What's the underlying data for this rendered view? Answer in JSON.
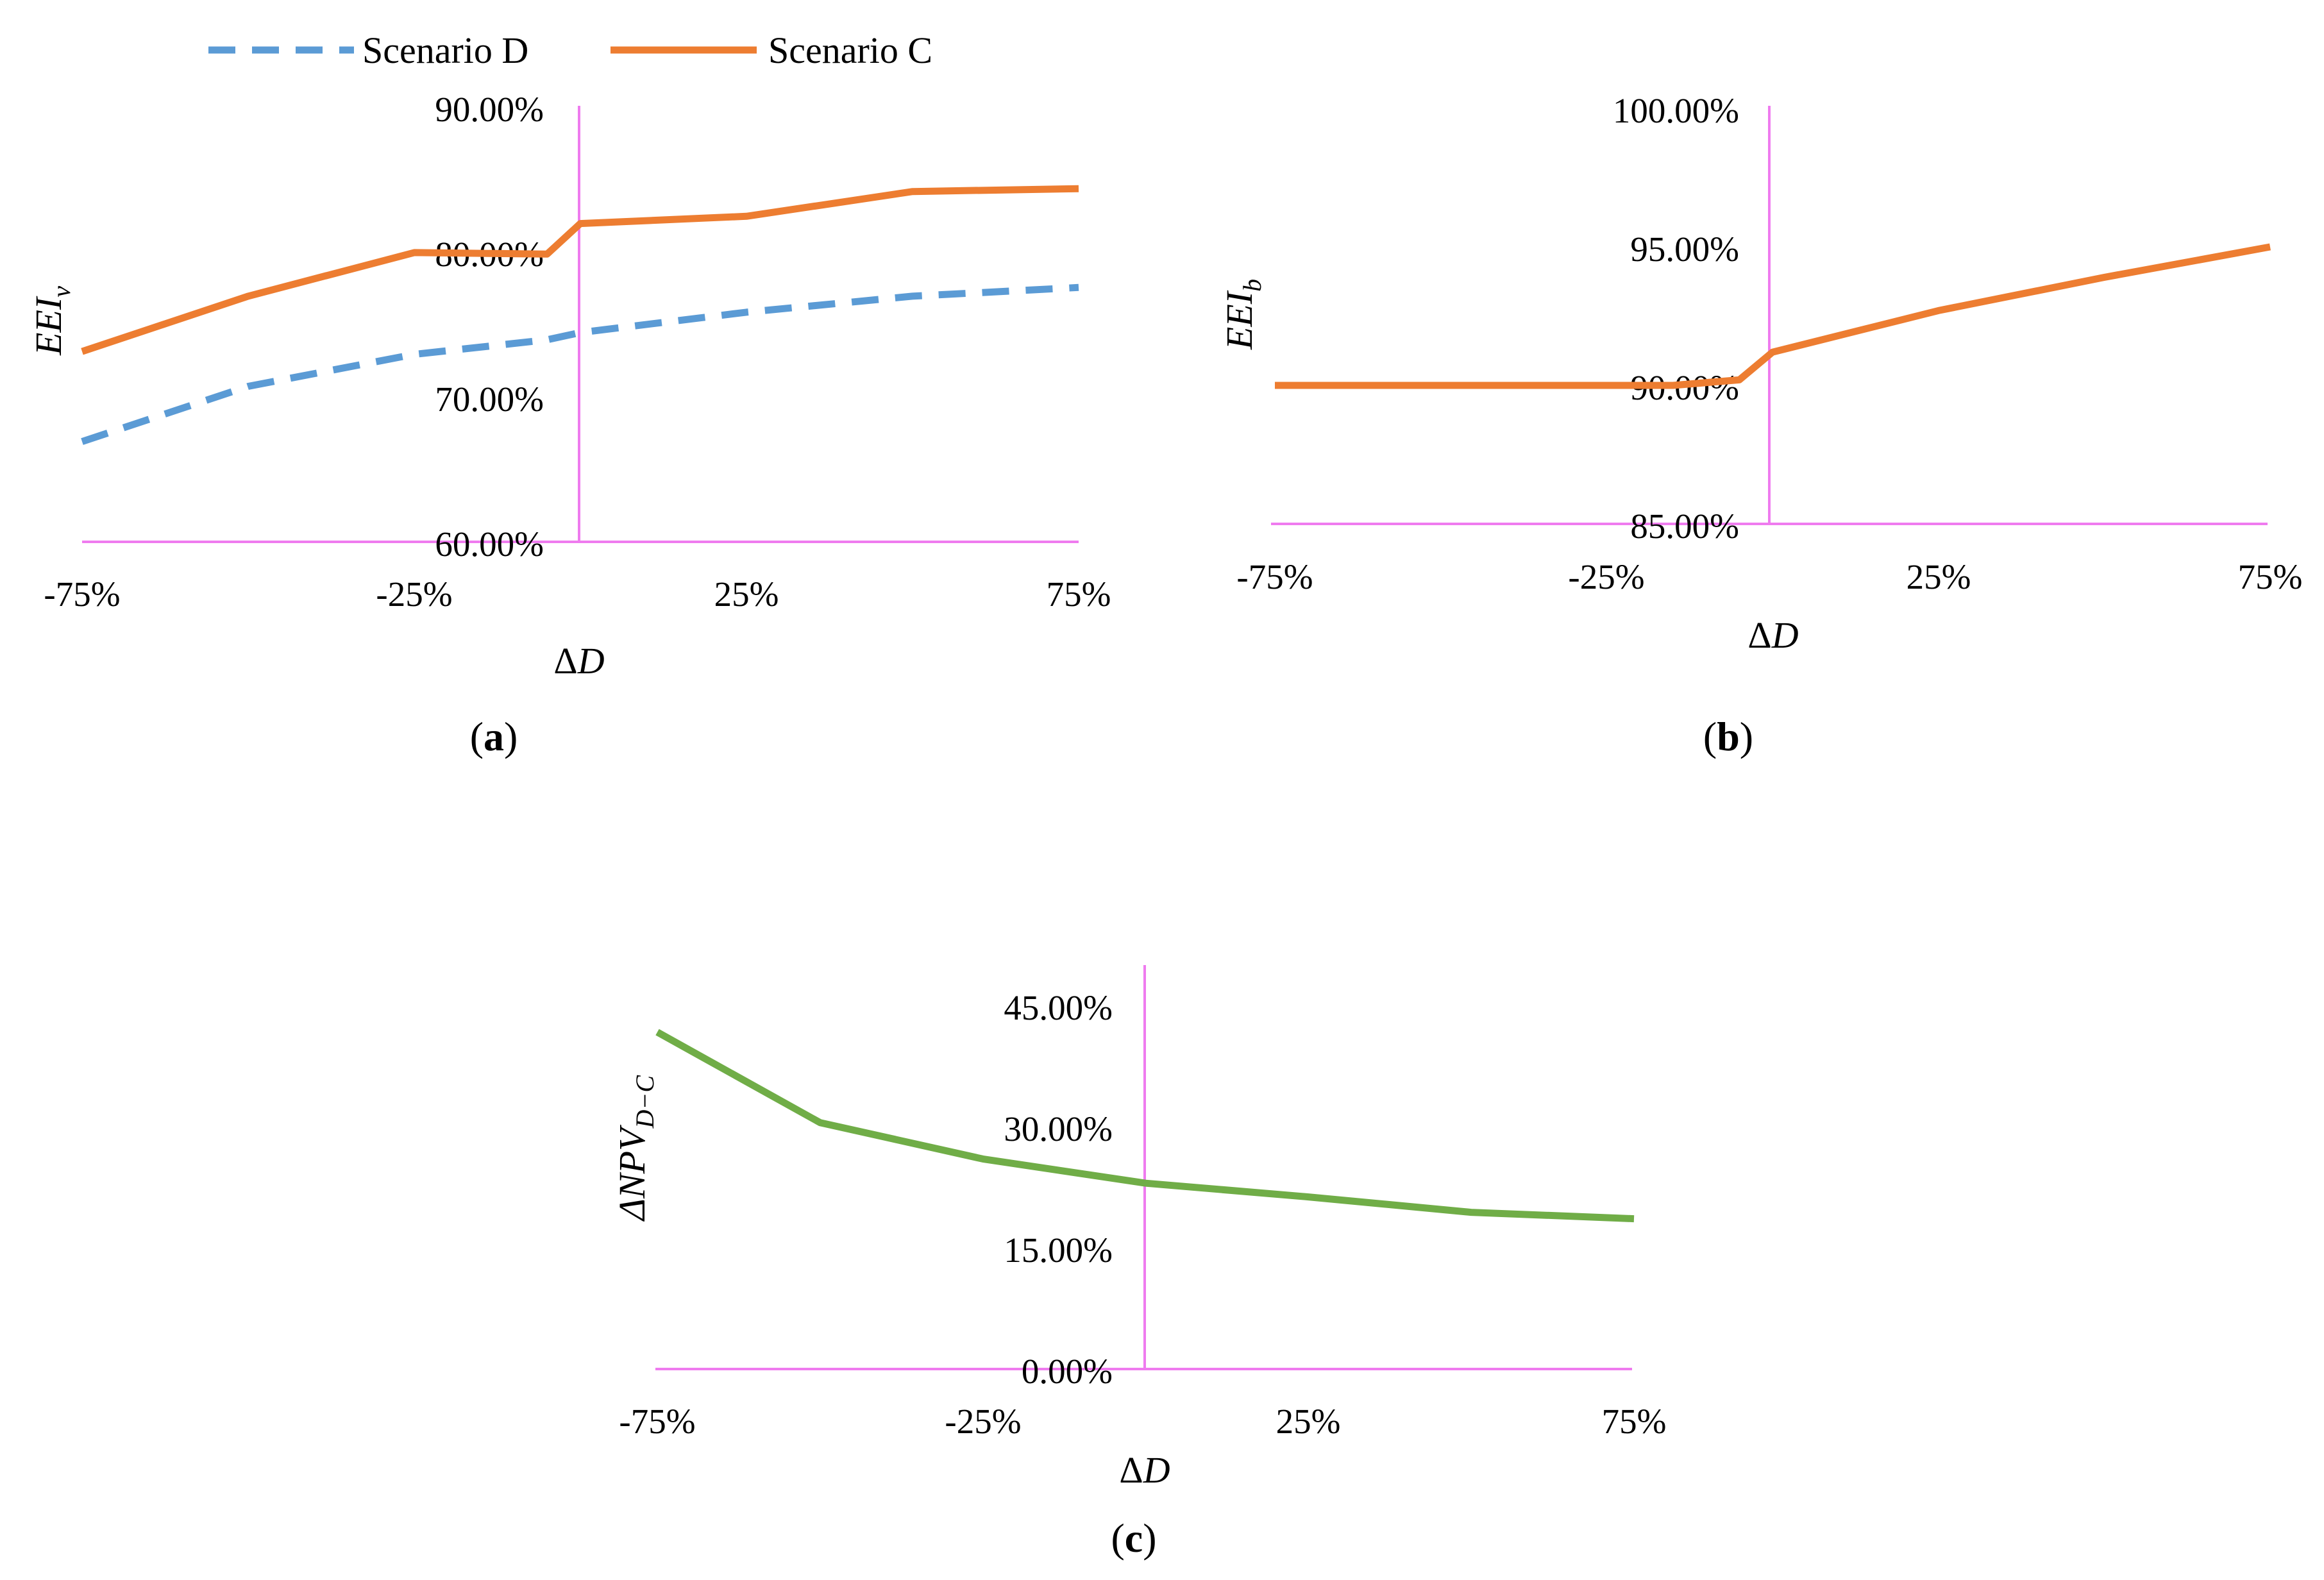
{
  "legend": {
    "items": [
      {
        "label": "Scenario D",
        "color": "#5b9bd5",
        "dash": true
      },
      {
        "label": "Scenario C",
        "color": "#ed7d31",
        "dash": false
      }
    ]
  },
  "colors": {
    "axis": "#ef7bef",
    "scenario_d": "#5b9bd5",
    "scenario_c": "#ed7d31",
    "npv": "#70ad47"
  },
  "chart_data": [
    {
      "type": "line",
      "panel_label": "a",
      "x": [
        -75,
        -50,
        -25,
        -5,
        0,
        25,
        50,
        75
      ],
      "xticks": [
        "-75%",
        "-25%",
        "25%",
        "75%"
      ],
      "xlabel_prefix": "Δ",
      "xlabel_var": "D",
      "ylabel_main": "EEI",
      "ylabel_sub": "v",
      "yticks": [
        "60.00%",
        "70.00%",
        "80.00%",
        "90.00%"
      ],
      "ylim": [
        60,
        90
      ],
      "series": [
        {
          "name": "Scenario D",
          "values": [
            66.9,
            70.7,
            72.9,
            73.9,
            74.4,
            75.8,
            76.9,
            77.5
          ]
        },
        {
          "name": "Scenario C",
          "values": [
            73.1,
            76.9,
            79.9,
            79.8,
            81.9,
            82.4,
            84.1,
            84.3
          ]
        }
      ]
    },
    {
      "type": "line",
      "panel_label": "b",
      "x": [
        -75,
        -50,
        -25,
        -15,
        -5,
        0,
        25,
        50,
        75
      ],
      "xticks": [
        "-75%",
        "-25%",
        "25%",
        "75%"
      ],
      "xlabel_prefix": "Δ",
      "xlabel_var": "D",
      "ylabel_main": "EEI",
      "ylabel_sub": "b",
      "yticks": [
        "85.00%",
        "90.00%",
        "95.00%",
        "100.00%"
      ],
      "ylim": [
        85,
        100
      ],
      "series": [
        {
          "name": "Scenario C",
          "values": [
            90.0,
            90.0,
            90.0,
            90.0,
            90.2,
            91.2,
            92.7,
            93.9,
            95.0
          ]
        }
      ]
    },
    {
      "type": "line",
      "panel_label": "c",
      "x": [
        -75,
        -50,
        -25,
        0,
        25,
        50,
        75
      ],
      "xticks": [
        "-75%",
        "-25%",
        "25%",
        "75%"
      ],
      "xlabel_prefix": "Δ",
      "xlabel_var": "D",
      "ylabel_main": "ΔNPV",
      "ylabel_sub": "D−C",
      "yticks": [
        "0.00%",
        "15.00%",
        "30.00%",
        "45.00%"
      ],
      "ylim": [
        0,
        50
      ],
      "series": [
        {
          "name": "ΔNPV D−C",
          "values": [
            41.7,
            30.5,
            26.0,
            23.0,
            21.3,
            19.4,
            18.6
          ]
        }
      ]
    }
  ]
}
